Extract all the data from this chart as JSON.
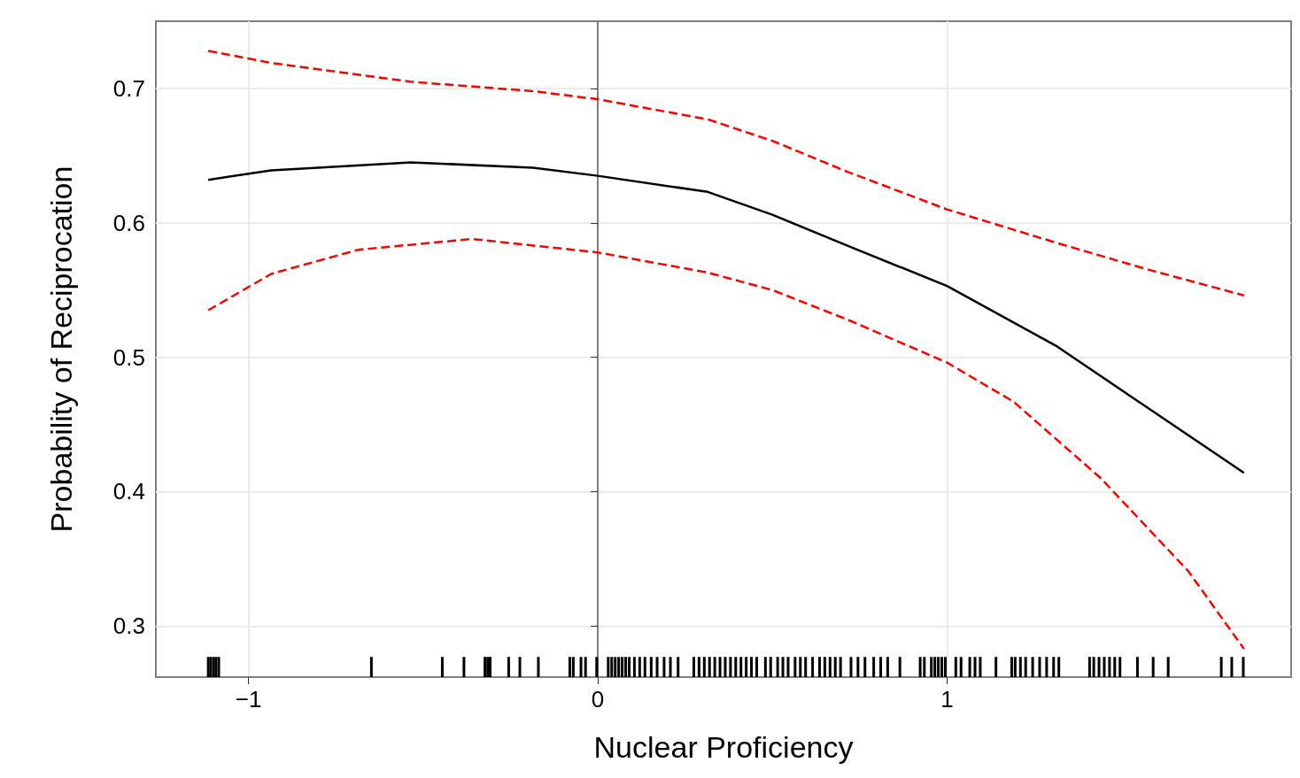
{
  "chart_data": {
    "type": "line",
    "xlabel": "Nuclear Proficiency",
    "ylabel": "Probability of Reciprocation",
    "xlim": [
      -1.265,
      1.985
    ],
    "ylim": [
      0.262,
      0.75
    ],
    "xticks": [
      {
        "value": -1,
        "label": "−1"
      },
      0,
      1
    ],
    "yticks": [
      0.3,
      0.4,
      0.5,
      0.6,
      0.7
    ],
    "grid": true,
    "series": [
      {
        "color": "#000000",
        "line_style": "solid",
        "x": [
          -1.115,
          -0.935,
          -0.535,
          -0.185,
          0,
          0.315,
          0.5,
          0.715,
          1.0,
          1.315,
          1.565,
          1.85
        ],
        "values": [
          0.632,
          0.639,
          0.645,
          0.641,
          0.635,
          0.623,
          0.606,
          0.583,
          0.553,
          0.508,
          0.464,
          0.414
        ]
      },
      {
        "color": "#ff0000",
        "line_style": "dashed",
        "x": [
          -1.115,
          -0.935,
          -0.535,
          -0.185,
          0,
          0.315,
          0.5,
          0.715,
          1.0,
          1.315,
          1.565,
          1.85
        ],
        "values": [
          0.728,
          0.719,
          0.705,
          0.698,
          0.692,
          0.677,
          0.661,
          0.638,
          0.61,
          0.585,
          0.566,
          0.546
        ]
      },
      {
        "color": "#ff0000",
        "line_style": "dashed",
        "x": [
          -1.115,
          -0.935,
          -0.685,
          -0.36,
          0,
          0.315,
          0.5,
          0.715,
          1.0,
          1.19,
          1.44,
          1.69,
          1.85
        ],
        "values": [
          0.535,
          0.562,
          0.58,
          0.588,
          0.578,
          0.563,
          0.55,
          0.528,
          0.496,
          0.467,
          0.41,
          0.341,
          0.283
        ]
      },
      {
        "type": "bar",
        "color": "#000000",
        "x": [
          -1.115,
          -1.108,
          -1.1,
          -1.093,
          -1.085,
          -0.648,
          -0.445,
          -0.383,
          -0.323,
          -0.315,
          -0.308,
          -0.255,
          -0.223,
          -0.17,
          -0.08,
          -0.07,
          -0.048,
          -0.035,
          -0.003,
          0.03,
          0.04,
          0.05,
          0.06,
          0.07,
          0.08,
          0.09,
          0.105,
          0.12,
          0.135,
          0.153,
          0.17,
          0.19,
          0.208,
          0.23,
          0.275,
          0.29,
          0.305,
          0.32,
          0.335,
          0.35,
          0.365,
          0.38,
          0.395,
          0.41,
          0.425,
          0.44,
          0.455,
          0.48,
          0.495,
          0.515,
          0.53,
          0.545,
          0.565,
          0.58,
          0.595,
          0.615,
          0.635,
          0.65,
          0.665,
          0.68,
          0.695,
          0.725,
          0.745,
          0.765,
          0.79,
          0.81,
          0.83,
          0.865,
          0.923,
          0.935,
          0.955,
          0.965,
          0.975,
          0.985,
          0.995,
          1.025,
          1.04,
          1.065,
          1.08,
          1.095,
          1.14,
          1.185,
          1.195,
          1.21,
          1.225,
          1.245,
          1.265,
          1.285,
          1.305,
          1.32,
          1.408,
          1.42,
          1.435,
          1.45,
          1.465,
          1.48,
          1.495,
          1.545,
          1.59,
          1.633,
          1.785,
          1.815,
          1.848
        ],
        "values": [
          0.277,
          0.277,
          0.277,
          0.277,
          0.277,
          0.277,
          0.277,
          0.277,
          0.277,
          0.277,
          0.277,
          0.277,
          0.277,
          0.277,
          0.277,
          0.277,
          0.277,
          0.277,
          0.277,
          0.277,
          0.277,
          0.277,
          0.277,
          0.277,
          0.277,
          0.277,
          0.277,
          0.277,
          0.277,
          0.277,
          0.277,
          0.277,
          0.277,
          0.277,
          0.277,
          0.277,
          0.277,
          0.277,
          0.277,
          0.277,
          0.277,
          0.277,
          0.277,
          0.277,
          0.277,
          0.277,
          0.277,
          0.277,
          0.277,
          0.277,
          0.277,
          0.277,
          0.277,
          0.277,
          0.277,
          0.277,
          0.277,
          0.277,
          0.277,
          0.277,
          0.277,
          0.277,
          0.277,
          0.277,
          0.277,
          0.277,
          0.277,
          0.277,
          0.277,
          0.277,
          0.277,
          0.277,
          0.277,
          0.277,
          0.277,
          0.277,
          0.277,
          0.277,
          0.277,
          0.277,
          0.277,
          0.277,
          0.277,
          0.277,
          0.277,
          0.277,
          0.277,
          0.277,
          0.277,
          0.277,
          0.277,
          0.277,
          0.277,
          0.277,
          0.277,
          0.277,
          0.277,
          0.277,
          0.277,
          0.277,
          0.277,
          0.277,
          0.277
        ]
      }
    ]
  }
}
